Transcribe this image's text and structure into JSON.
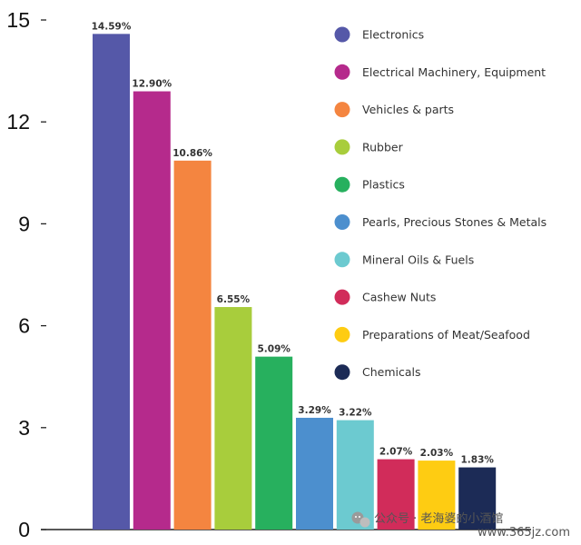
{
  "chart_data": {
    "type": "bar",
    "title": "",
    "xlabel": "",
    "ylabel": "",
    "ylim": [
      0,
      15
    ],
    "yticks": [
      0,
      3,
      6,
      9,
      12,
      15
    ],
    "grid": false,
    "legend_position": "top-right",
    "categories": [
      "Electronics",
      "Electrical Machinery, Equipment",
      "Vehicles & parts",
      "Rubber",
      "Plastics",
      "Pearls, Precious Stones & Metals",
      "Mineral Oils & Fuels",
      "Cashew Nuts",
      "Preparations of Meat/Seafood",
      "Chemicals"
    ],
    "values": [
      14.59,
      12.9,
      10.86,
      6.55,
      5.09,
      3.29,
      3.22,
      2.07,
      2.03,
      1.83
    ],
    "data_labels": [
      "14.59%",
      "12.90%",
      "10.86%",
      "6.55%",
      "5.09%",
      "3.29%",
      "3.22%",
      "2.07%",
      "2.03%",
      "1.83%"
    ],
    "colors": [
      "#5558a8",
      "#b52a8c",
      "#f48540",
      "#a8cd3c",
      "#27b05e",
      "#4c8fce",
      "#6ccad0",
      "#d12c5a",
      "#fecc12",
      "#1c2b56"
    ]
  },
  "watermark": {
    "text": "公众号 · 老海婆的小酒馆",
    "url": "www.365jz.com"
  }
}
